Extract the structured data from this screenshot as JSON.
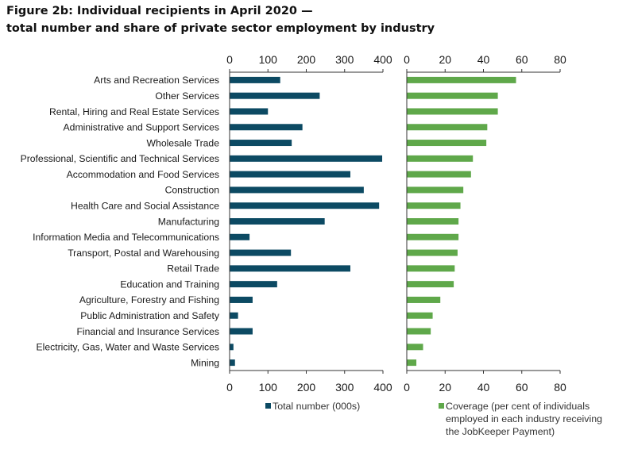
{
  "title_line1": "Figure 2b: Individual recipients in April 2020 —",
  "title_line2": "total number and share of private sector employment by industry",
  "colors": {
    "total": "#0c4a63",
    "coverage": "#5fa84a",
    "axis": "#333333"
  },
  "chart_data": [
    {
      "type": "bar",
      "orientation": "horizontal",
      "categories": [
        "Arts and Recreation Services",
        "Other Services",
        "Rental, Hiring and Real Estate Services",
        "Administrative and Support Services",
        "Wholesale Trade",
        "Professional, Scientific and Technical Services",
        "Accommodation and Food Services",
        "Construction",
        "Health Care and Social Assistance",
        "Manufacturing",
        "Information Media and Telecommunications",
        "Transport, Postal and Warehousing",
        "Retail Trade",
        "Education and Training",
        "Agriculture, Forestry and Fishing",
        "Public Administration and Safety",
        "Financial and Insurance Services",
        "Electricity, Gas, Water and Waste Services",
        "Mining"
      ],
      "series": [
        {
          "name": "Total number (000s)",
          "values": [
            132,
            235,
            100,
            190,
            162,
            398,
            315,
            350,
            390,
            248,
            52,
            160,
            315,
            124,
            60,
            22,
            60,
            10,
            14
          ]
        }
      ],
      "xlim": [
        0,
        400
      ],
      "xticks": [
        "0",
        "100",
        "200",
        "300",
        "400"
      ],
      "legend_position": "bottom"
    },
    {
      "type": "bar",
      "orientation": "horizontal",
      "categories": [
        "Arts and Recreation Services",
        "Other Services",
        "Rental, Hiring and Real Estate Services",
        "Administrative and Support Services",
        "Wholesale Trade",
        "Professional, Scientific and Technical Services",
        "Accommodation and Food Services",
        "Construction",
        "Health Care and Social Assistance",
        "Manufacturing",
        "Information Media and Telecommunications",
        "Transport, Postal and Warehousing",
        "Retail Trade",
        "Education and Training",
        "Agriculture, Forestry and Fishing",
        "Public Administration and Safety",
        "Financial and Insurance Services",
        "Electricity, Gas, Water and Waste Services",
        "Mining"
      ],
      "series": [
        {
          "name": "Coverage (per cent of individuals employed in each industry receiving the JobKeeper Payment)",
          "values": [
            57,
            47.5,
            47.5,
            42,
            41.5,
            34.5,
            33.5,
            29.5,
            28,
            27,
            27,
            26.5,
            25,
            24.5,
            17.5,
            13.5,
            12.5,
            8.5,
            5
          ]
        }
      ],
      "legend_lines": [
        "Coverage (per cent of individuals",
        "employed in each industry receiving",
        "the JobKeeper Payment)"
      ],
      "xlim": [
        0,
        80
      ],
      "xticks": [
        "0",
        "20",
        "40",
        "60",
        "80"
      ],
      "legend_position": "bottom"
    }
  ]
}
